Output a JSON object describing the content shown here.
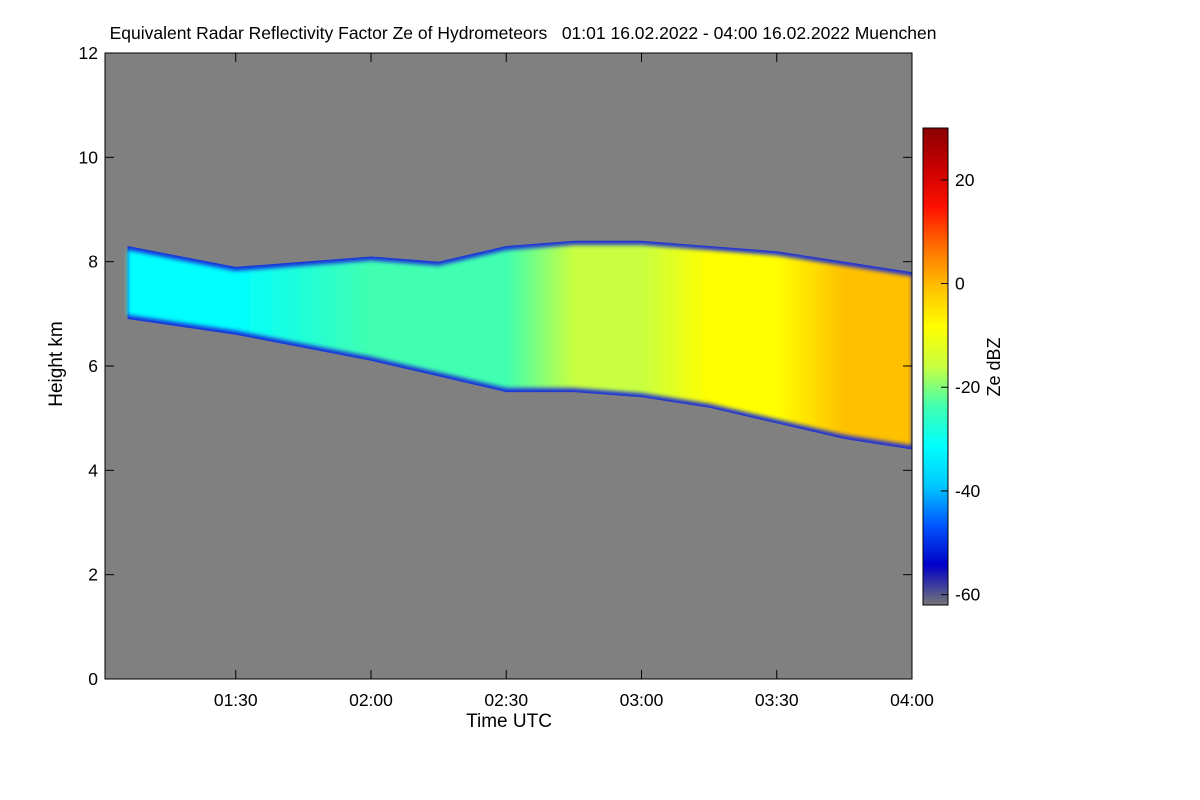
{
  "chart_data": {
    "type": "heatmap",
    "title": "Equivalent Radar Reflectivity Factor Ze of Hydrometeors   01:01 16.02.2022 - 04:00 16.02.2022 Muenchen",
    "xlabel": "Time UTC",
    "ylabel": "Height km",
    "x_range": [
      "01:01",
      "04:00"
    ],
    "ylim": [
      0,
      12
    ],
    "x_ticks": [
      "01:30",
      "02:00",
      "02:30",
      "03:00",
      "03:30",
      "04:00"
    ],
    "y_ticks": [
      0,
      2,
      4,
      6,
      8,
      10,
      12
    ],
    "grid": false,
    "colorbar": {
      "label": "Ze dBZ",
      "range": [
        -62,
        30
      ],
      "ticks": [
        -60,
        -40,
        -20,
        0,
        20
      ],
      "colors": [
        "#777777",
        "#0000c8",
        "#0055ff",
        "#00c8ff",
        "#00ffff",
        "#40ffb0",
        "#c8ff40",
        "#ffff00",
        "#ffc000",
        "#ff7000",
        "#ff1000",
        "#c80000",
        "#8b0000"
      ]
    },
    "background_color": "#808080",
    "cloud_layer": {
      "description_points": [
        {
          "time": "01:06",
          "base_km": 6.9,
          "top_km": 8.3,
          "ze_dbz": -28
        },
        {
          "time": "01:30",
          "base_km": 6.6,
          "top_km": 7.9,
          "ze_dbz": -28
        },
        {
          "time": "02:00",
          "base_km": 6.1,
          "top_km": 8.1,
          "ze_dbz": -27
        },
        {
          "time": "02:15",
          "base_km": 5.8,
          "top_km": 8.0,
          "ze_dbz": -22
        },
        {
          "time": "02:30",
          "base_km": 5.5,
          "top_km": 8.3,
          "ze_dbz": -20
        },
        {
          "time": "02:45",
          "base_km": 5.5,
          "top_km": 8.4,
          "ze_dbz": -17
        },
        {
          "time": "03:00",
          "base_km": 5.4,
          "top_km": 8.4,
          "ze_dbz": -14
        },
        {
          "time": "03:15",
          "base_km": 5.2,
          "top_km": 8.3,
          "ze_dbz": -10
        },
        {
          "time": "03:30",
          "base_km": 4.9,
          "top_km": 8.2,
          "ze_dbz": -6
        },
        {
          "time": "03:45",
          "base_km": 4.6,
          "top_km": 8.0,
          "ze_dbz": -3
        },
        {
          "time": "04:00",
          "base_km": 4.4,
          "top_km": 7.8,
          "ze_dbz": -4
        }
      ]
    }
  }
}
